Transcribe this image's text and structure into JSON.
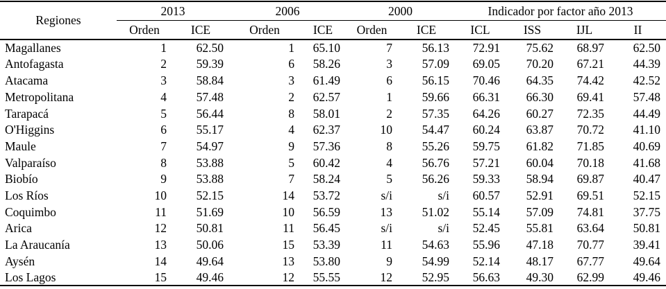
{
  "table": {
    "region_header": "Regiones",
    "groups": [
      {
        "label": "2013",
        "columns": [
          "Orden",
          "ICE"
        ]
      },
      {
        "label": "2006",
        "columns": [
          "Orden",
          "ICE"
        ]
      },
      {
        "label": "2000",
        "columns": [
          "Orden",
          "ICE"
        ]
      },
      {
        "label": "Indicador por factor año 2013",
        "columns": [
          "ICL",
          "ISS",
          "IJL",
          "II"
        ]
      }
    ],
    "missing_value_label": "s/i",
    "rows": [
      {
        "region": "Magallanes",
        "values": [
          "1",
          "62.50",
          "1",
          "65.10",
          "7",
          "56.13",
          "72.91",
          "75.62",
          "68.97",
          "62.50"
        ]
      },
      {
        "region": "Antofagasta",
        "values": [
          "2",
          "59.39",
          "6",
          "58.26",
          "3",
          "57.09",
          "69.05",
          "70.20",
          "67.21",
          "44.39"
        ]
      },
      {
        "region": "Atacama",
        "values": [
          "3",
          "58.84",
          "3",
          "61.49",
          "6",
          "56.15",
          "70.46",
          "64.35",
          "74.42",
          "42.52"
        ]
      },
      {
        "region": "Metropolitana",
        "values": [
          "4",
          "57.48",
          "2",
          "62.57",
          "1",
          "59.66",
          "66.31",
          "66.30",
          "69.41",
          "57.48"
        ]
      },
      {
        "region": "Tarapacá",
        "values": [
          "5",
          "56.44",
          "8",
          "58.01",
          "2",
          "57.35",
          "64.26",
          "60.27",
          "72.35",
          "44.49"
        ]
      },
      {
        "region": "O'Higgins",
        "values": [
          "6",
          "55.17",
          "4",
          "62.37",
          "10",
          "54.47",
          "60.24",
          "63.87",
          "70.72",
          "41.10"
        ]
      },
      {
        "region": "Maule",
        "values": [
          "7",
          "54.97",
          "9",
          "57.36",
          "8",
          "55.26",
          "59.75",
          "61.82",
          "71.85",
          "40.69"
        ]
      },
      {
        "region": "Valparaíso",
        "values": [
          "8",
          "53.88",
          "5",
          "60.42",
          "4",
          "56.76",
          "57.21",
          "60.04",
          "70.18",
          "41.68"
        ]
      },
      {
        "region": "Biobío",
        "values": [
          "9",
          "53.88",
          "7",
          "58.24",
          "5",
          "56.26",
          "59.33",
          "58.94",
          "69.87",
          "40.47"
        ]
      },
      {
        "region": "Los Ríos",
        "values": [
          "10",
          "52.15",
          "14",
          "53.72",
          "s/i",
          "s/i",
          "60.57",
          "52.91",
          "69.51",
          "52.15"
        ]
      },
      {
        "region": "Coquimbo",
        "values": [
          "11",
          "51.69",
          "10",
          "56.59",
          "13",
          "51.02",
          "55.14",
          "57.09",
          "74.81",
          "37.75"
        ]
      },
      {
        "region": "Arica",
        "values": [
          "12",
          "50.81",
          "11",
          "56.45",
          "s/i",
          "s/i",
          "52.45",
          "55.81",
          "63.64",
          "50.81"
        ]
      },
      {
        "region": "La Araucanía",
        "values": [
          "13",
          "50.06",
          "15",
          "53.39",
          "11",
          "54.63",
          "55.96",
          "47.18",
          "70.77",
          "39.41"
        ]
      },
      {
        "region": "Aysén",
        "values": [
          "14",
          "49.64",
          "13",
          "53.80",
          "9",
          "54.99",
          "52.14",
          "48.17",
          "67.77",
          "49.64"
        ]
      },
      {
        "region": "Los Lagos",
        "values": [
          "15",
          "49.46",
          "12",
          "55.55",
          "12",
          "52.95",
          "56.63",
          "49.30",
          "62.99",
          "49.46"
        ]
      }
    ]
  },
  "chart_data": {
    "type": "table",
    "title": "Indicador por factor año 2013",
    "columns": [
      "Regiones",
      "Orden 2013",
      "ICE 2013",
      "Orden 2006",
      "ICE 2006",
      "Orden 2000",
      "ICE 2000",
      "ICL",
      "ISS",
      "IJL",
      "II"
    ],
    "rows": [
      [
        "Magallanes",
        1,
        62.5,
        1,
        65.1,
        7,
        56.13,
        72.91,
        75.62,
        68.97,
        62.5
      ],
      [
        "Antofagasta",
        2,
        59.39,
        6,
        58.26,
        3,
        57.09,
        69.05,
        70.2,
        67.21,
        44.39
      ],
      [
        "Atacama",
        3,
        58.84,
        3,
        61.49,
        6,
        56.15,
        70.46,
        64.35,
        74.42,
        42.52
      ],
      [
        "Metropolitana",
        4,
        57.48,
        2,
        62.57,
        1,
        59.66,
        66.31,
        66.3,
        69.41,
        57.48
      ],
      [
        "Tarapacá",
        5,
        56.44,
        8,
        58.01,
        2,
        57.35,
        64.26,
        60.27,
        72.35,
        44.49
      ],
      [
        "O'Higgins",
        6,
        55.17,
        4,
        62.37,
        10,
        54.47,
        60.24,
        63.87,
        70.72,
        41.1
      ],
      [
        "Maule",
        7,
        54.97,
        9,
        57.36,
        8,
        55.26,
        59.75,
        61.82,
        71.85,
        40.69
      ],
      [
        "Valparaíso",
        8,
        53.88,
        5,
        60.42,
        4,
        56.76,
        57.21,
        60.04,
        70.18,
        41.68
      ],
      [
        "Biobío",
        9,
        53.88,
        7,
        58.24,
        5,
        56.26,
        59.33,
        58.94,
        69.87,
        40.47
      ],
      [
        "Los Ríos",
        10,
        52.15,
        14,
        53.72,
        "s/i",
        "s/i",
        60.57,
        52.91,
        69.51,
        52.15
      ],
      [
        "Coquimbo",
        11,
        51.69,
        10,
        56.59,
        13,
        51.02,
        55.14,
        57.09,
        74.81,
        37.75
      ],
      [
        "Arica",
        12,
        50.81,
        11,
        56.45,
        "s/i",
        "s/i",
        52.45,
        55.81,
        63.64,
        50.81
      ],
      [
        "La Araucanía",
        13,
        50.06,
        15,
        53.39,
        11,
        54.63,
        55.96,
        47.18,
        70.77,
        39.41
      ],
      [
        "Aysén",
        14,
        49.64,
        13,
        53.8,
        9,
        54.99,
        52.14,
        48.17,
        67.77,
        49.64
      ],
      [
        "Los Lagos",
        15,
        49.46,
        12,
        55.55,
        12,
        52.95,
        56.63,
        49.3,
        62.99,
        49.46
      ]
    ]
  }
}
